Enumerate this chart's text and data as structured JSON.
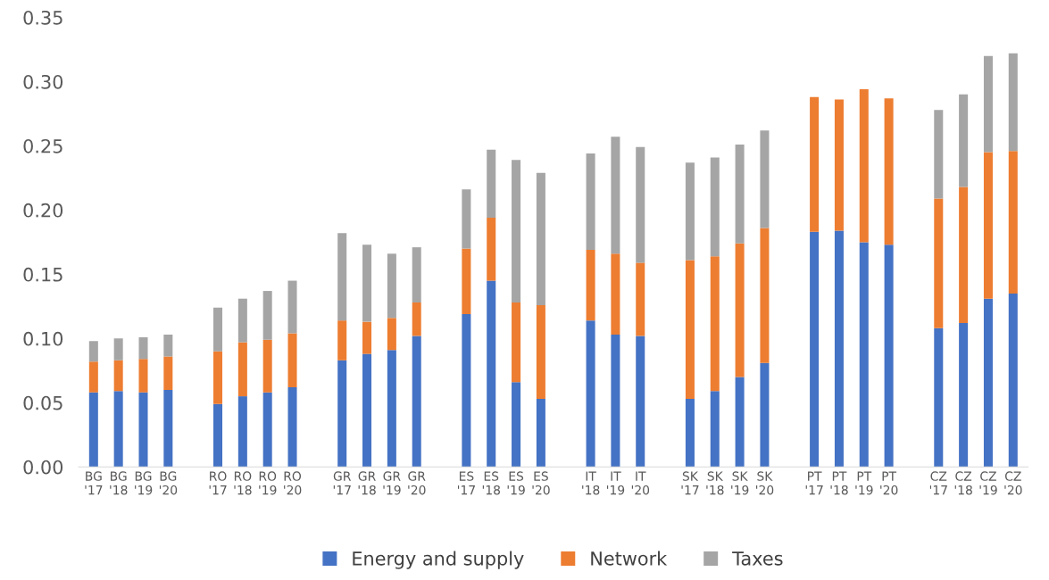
{
  "chart_data": {
    "type": "bar",
    "stacked": true,
    "categories": [
      "BG\n'17",
      "BG\n'18",
      "BG\n'19",
      "BG\n'20",
      null,
      "RO\n'17",
      "RO\n'18",
      "RO\n'19",
      "RO\n'20",
      null,
      "GR\n'17",
      "GR\n'18",
      "GR\n'19",
      "GR\n'20",
      null,
      "ES\n'17",
      "ES\n'18",
      "ES\n'19",
      "ES\n'20",
      null,
      "IT\n'18",
      "IT\n'19",
      "IT\n'20",
      null,
      "SK\n'17",
      "SK\n'18",
      "SK\n'19",
      "SK\n'20",
      null,
      "PT\n'17",
      "PT\n'18",
      "PT\n'19",
      "PT\n'20",
      null,
      "CZ\n'17",
      "CZ\n'18",
      "CZ\n'19",
      "CZ\n'20"
    ],
    "series": [
      {
        "name": "Energy and supply",
        "color": "#4472c4",
        "values": [
          0.058,
          0.059,
          0.058,
          0.06,
          null,
          0.049,
          0.055,
          0.058,
          0.062,
          null,
          0.083,
          0.088,
          0.091,
          0.102,
          null,
          0.119,
          0.145,
          0.066,
          0.053,
          null,
          0.114,
          0.103,
          0.102,
          null,
          0.053,
          0.059,
          0.07,
          0.081,
          null,
          0.183,
          0.184,
          0.175,
          0.173,
          null,
          0.108,
          0.112,
          0.131,
          0.135
        ]
      },
      {
        "name": "Network",
        "color": "#ed7d31",
        "values": [
          0.024,
          0.024,
          0.026,
          0.026,
          null,
          0.041,
          0.042,
          0.041,
          0.042,
          null,
          0.031,
          0.025,
          0.025,
          0.026,
          null,
          0.051,
          0.049,
          0.062,
          0.073,
          null,
          0.055,
          0.063,
          0.057,
          null,
          0.108,
          0.105,
          0.104,
          0.105,
          null,
          0.105,
          0.102,
          0.119,
          0.114,
          null,
          0.101,
          0.106,
          0.114,
          0.111
        ]
      },
      {
        "name": "Taxes",
        "color": "#a5a5a5",
        "values": [
          0.016,
          0.017,
          0.017,
          0.017,
          null,
          0.034,
          0.034,
          0.038,
          0.041,
          null,
          0.068,
          0.06,
          0.05,
          0.043,
          null,
          0.046,
          0.053,
          0.111,
          0.103,
          null,
          0.075,
          0.091,
          0.09,
          null,
          0.076,
          0.077,
          0.077,
          0.076,
          null,
          null,
          null,
          null,
          null,
          null,
          0.069,
          0.072,
          0.075,
          0.076
        ]
      }
    ],
    "ylim": [
      0,
      0.35
    ],
    "yticks": [
      {
        "value": 0,
        "label": "0.00"
      },
      {
        "value": 0.05,
        "label": "0.05"
      },
      {
        "value": 0.1,
        "label": "0.10"
      },
      {
        "value": 0.15,
        "label": "0.15"
      },
      {
        "value": 0.2,
        "label": "0.20"
      },
      {
        "value": 0.25,
        "label": "0.25"
      },
      {
        "value": 0.3,
        "label": "0.30"
      },
      {
        "value": 0.35,
        "label": "0.35"
      }
    ],
    "grid": false,
    "legend": "bottom"
  }
}
